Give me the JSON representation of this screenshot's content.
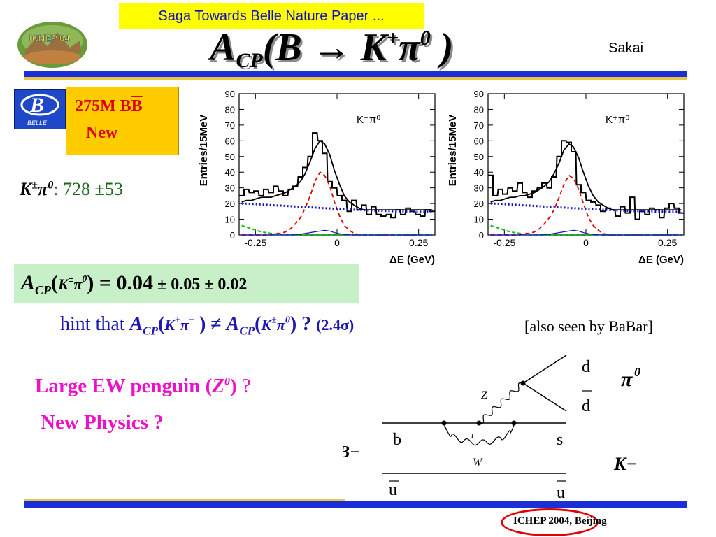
{
  "banner": "Saga Towards Belle Nature Paper ...",
  "logo_text": "ICHEP 04",
  "title": {
    "a": "A",
    "cp": "CP",
    "rest": "(B → K",
    "sup1": "+",
    "pi": "π",
    "sup2": "0",
    "close": " )"
  },
  "author": "Sakai",
  "belle": {
    "logo_label": "BELLE",
    "count": "275M B",
    "bbar": "B",
    "new": "New"
  },
  "yield": {
    "k": "K",
    "pm": "±",
    "pi": "π",
    "zero": "0",
    "value": ": 728 ±53"
  },
  "acp": {
    "a": "A",
    "cp": "CP",
    "open": "(",
    "k": "K",
    "pm": "±",
    "pi": "π",
    "zero": "0",
    "eq": ") = 0.04",
    "err": " ± 0.05 ± 0.02"
  },
  "hint": {
    "prefix": "hint that ",
    "a1": "A",
    "cp1": "CP",
    "open1": "(",
    "k1": "K",
    "plus1": "+",
    "pi1": "π",
    "minus1": "−",
    "close1": " ) ≠ ",
    "a2": "A",
    "cp2": "CP",
    "open2": "(",
    "k2": "K",
    "pm2": "±",
    "pi2": "π",
    "zero2": "0",
    "close2": ") ? ",
    "sig": "(2.4σ)"
  },
  "babar_note": "[also seen by BaBar]",
  "penguin": {
    "text": "Large EW penguin (",
    "z": "Z",
    "zero": "0",
    "close": ") ",
    "q": "?"
  },
  "new_physics": "New Physics ?",
  "feynman": {
    "d1": "d",
    "d2": "d",
    "pi": "π",
    "pi_sup": "0",
    "z": "Z",
    "b": "b",
    "s": "s",
    "t": "t",
    "w": "W",
    "bminus": "B−",
    "kminus": "K−",
    "u1": "u",
    "u2": "u"
  },
  "footer": "ICHEP 2004, Beijing",
  "chart_data": [
    {
      "type": "line",
      "label": "K⁻π⁰",
      "xlabel": "ΔE (GeV)",
      "ylabel": "Entries/15MeV",
      "xlim": [
        -0.3,
        0.3
      ],
      "ylim": [
        0,
        90
      ],
      "xticks": [
        "-0.25",
        "0",
        "0.25"
      ],
      "yticks": [
        "0",
        "10",
        "20",
        "30",
        "40",
        "50",
        "60",
        "70",
        "80",
        "90"
      ],
      "x": [
        -0.292,
        -0.278,
        -0.262,
        -0.248,
        -0.232,
        -0.218,
        -0.202,
        -0.188,
        -0.172,
        -0.158,
        -0.142,
        -0.128,
        -0.112,
        -0.098,
        -0.082,
        -0.068,
        -0.052,
        -0.038,
        -0.022,
        -0.008,
        0.008,
        0.022,
        0.038,
        0.052,
        0.068,
        0.082,
        0.098,
        0.112,
        0.128,
        0.142,
        0.158,
        0.172,
        0.188,
        0.202,
        0.218,
        0.232,
        0.248,
        0.262,
        0.278,
        0.292
      ],
      "series": [
        {
          "kind": "histogram",
          "values": [
            25,
            29,
            27,
            28,
            25,
            29,
            27,
            31,
            28,
            25,
            29,
            31,
            37,
            43,
            50,
            65,
            60,
            52,
            34,
            30,
            25,
            22,
            15,
            22,
            16,
            19,
            13,
            18,
            13,
            12,
            13,
            11,
            16,
            13,
            17,
            15,
            13,
            12,
            16,
            15
          ],
          "color": "#000000"
        },
        {
          "kind": "total-fit",
          "values": [
            21,
            22,
            22,
            23,
            24,
            24,
            24,
            25,
            26,
            27,
            29,
            31,
            34,
            39,
            47,
            55,
            60,
            58,
            51,
            41,
            32,
            25,
            21,
            19,
            17,
            16,
            16,
            16,
            16,
            16,
            16,
            16,
            16,
            16,
            16,
            16,
            16,
            16,
            16,
            16
          ],
          "color": "#000000"
        },
        {
          "kind": "signal",
          "values": [
            0,
            0,
            0,
            0,
            0,
            0,
            0,
            1,
            1,
            2,
            4,
            7,
            11,
            17,
            25,
            34,
            40,
            38,
            31,
            21,
            12,
            6,
            3,
            1,
            0,
            0,
            0,
            0,
            0,
            0,
            0,
            0,
            0,
            0,
            0,
            0,
            0,
            0,
            0,
            0
          ],
          "color": "#e00000"
        },
        {
          "kind": "continuum",
          "values": [
            20,
            19.9,
            19.8,
            19.6,
            19.4,
            19.2,
            19.0,
            18.8,
            18.7,
            18.5,
            18.3,
            18.1,
            17.9,
            17.8,
            17.6,
            17.4,
            17.2,
            17.0,
            16.9,
            16.7,
            16.5,
            16.4,
            16.2,
            16.1,
            15.9,
            15.8,
            15.6,
            15.5,
            15.4,
            15.3,
            15.2,
            15.1,
            15.0,
            15.0,
            14.9,
            14.9,
            14.8,
            14.8,
            14.8,
            14.7
          ],
          "color": "#1010c8"
        },
        {
          "kind": "charmless-bkg",
          "values": [
            6,
            5,
            4,
            3,
            2,
            1.5,
            1,
            0.5,
            0.2,
            0.1,
            0,
            0,
            0,
            0,
            0,
            0,
            0,
            0,
            0,
            0,
            0,
            0,
            0,
            0,
            0,
            0,
            0,
            0,
            0,
            0,
            0,
            0,
            0,
            0,
            0,
            0,
            0,
            0,
            0,
            0
          ],
          "color": "#10c010"
        },
        {
          "kind": "other-bkg",
          "values": [
            0,
            0,
            0,
            0,
            0,
            0,
            0,
            0,
            0,
            0,
            0,
            0.2,
            0.5,
            1,
            1.5,
            2,
            2.5,
            3,
            2.5,
            1.5,
            0.8,
            0.3,
            0.1,
            0,
            0,
            0,
            0,
            0,
            0,
            0,
            0,
            0,
            0,
            0,
            0,
            0,
            0,
            0,
            0,
            0
          ],
          "color": "#1010c8"
        }
      ]
    },
    {
      "type": "line",
      "label": "K⁺π⁰",
      "xlabel": "ΔE (GeV)",
      "ylabel": "Entries/15MeV",
      "xlim": [
        -0.3,
        0.3
      ],
      "ylim": [
        0,
        90
      ],
      "xticks": [
        "-0.25",
        "0",
        "0.25"
      ],
      "yticks": [
        "0",
        "10",
        "20",
        "30",
        "40",
        "50",
        "60",
        "70",
        "80",
        "90"
      ],
      "x": [
        -0.292,
        -0.278,
        -0.262,
        -0.248,
        -0.232,
        -0.218,
        -0.202,
        -0.188,
        -0.172,
        -0.158,
        -0.142,
        -0.128,
        -0.112,
        -0.098,
        -0.082,
        -0.068,
        -0.052,
        -0.038,
        -0.022,
        -0.008,
        0.008,
        0.022,
        0.038,
        0.052,
        0.068,
        0.082,
        0.098,
        0.112,
        0.128,
        0.142,
        0.158,
        0.172,
        0.188,
        0.202,
        0.218,
        0.232,
        0.248,
        0.262,
        0.278,
        0.292
      ],
      "series": [
        {
          "kind": "histogram",
          "values": [
            38,
            25,
            29,
            26,
            30,
            28,
            33,
            27,
            24,
            28,
            30,
            33,
            30,
            37,
            50,
            60,
            59,
            53,
            32,
            27,
            22,
            21,
            19,
            15,
            17,
            16,
            12,
            18,
            14,
            24,
            10,
            15,
            13,
            17,
            16,
            11,
            17,
            20,
            17,
            14
          ],
          "color": "#000000"
        },
        {
          "kind": "total-fit",
          "values": [
            21,
            22,
            22,
            23,
            24,
            24,
            25,
            25,
            26,
            27,
            29,
            31,
            34,
            39,
            46,
            54,
            58,
            56,
            49,
            40,
            31,
            25,
            21,
            19,
            17,
            16,
            16,
            16,
            16,
            16,
            16,
            16,
            16,
            16,
            16,
            16,
            16,
            16,
            16,
            16
          ],
          "color": "#000000"
        },
        {
          "kind": "signal",
          "values": [
            0,
            0,
            0,
            0,
            0,
            0,
            0,
            1,
            1,
            2,
            4,
            7,
            11,
            16,
            24,
            32,
            38,
            36,
            29,
            20,
            11,
            6,
            3,
            1,
            0,
            0,
            0,
            0,
            0,
            0,
            0,
            0,
            0,
            0,
            0,
            0,
            0,
            0,
            0,
            0
          ],
          "color": "#e00000"
        },
        {
          "kind": "continuum",
          "values": [
            20,
            19.9,
            19.8,
            19.6,
            19.4,
            19.2,
            19.0,
            18.8,
            18.7,
            18.5,
            18.3,
            18.1,
            17.9,
            17.8,
            17.6,
            17.4,
            17.2,
            17.0,
            16.9,
            16.7,
            16.5,
            16.4,
            16.2,
            16.1,
            15.9,
            15.8,
            15.6,
            15.5,
            15.4,
            15.3,
            15.2,
            15.1,
            15.0,
            15.0,
            14.9,
            14.9,
            14.8,
            14.8,
            14.8,
            14.7
          ],
          "color": "#1010c8"
        },
        {
          "kind": "charmless-bkg",
          "values": [
            6,
            5,
            4,
            3,
            2,
            1.5,
            1,
            0.5,
            0.2,
            0.1,
            0,
            0,
            0,
            0,
            0,
            0,
            0,
            0,
            0,
            0,
            0,
            0,
            0,
            0,
            0,
            0,
            0,
            0,
            0,
            0,
            0,
            0,
            0,
            0,
            0,
            0,
            0,
            0,
            0,
            0
          ],
          "color": "#10c010"
        },
        {
          "kind": "other-bkg",
          "values": [
            0,
            0,
            0,
            0,
            0,
            0,
            0,
            0,
            0,
            0,
            0,
            0.2,
            0.5,
            1,
            1.5,
            2,
            2.5,
            3,
            2.5,
            1.5,
            0.8,
            0.3,
            0.1,
            0,
            0,
            0,
            0,
            0,
            0,
            0,
            0,
            0,
            0,
            0,
            0,
            0,
            0,
            0,
            0,
            0
          ],
          "color": "#1010c8"
        }
      ]
    }
  ]
}
